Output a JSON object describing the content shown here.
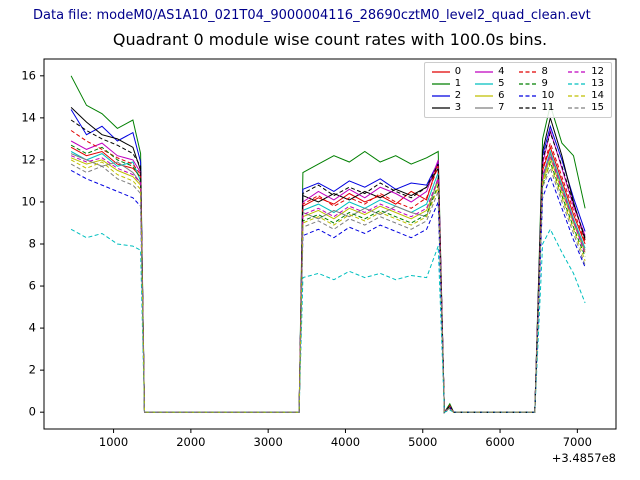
{
  "header": {
    "data_file_label": "Data file: modeM0/AS1A10_021T04_9000004116_28690cztM0_level2_quad_clean.evt"
  },
  "title": "Quadrant 0 module wise count rates with 100.0s bins.",
  "axis": {
    "x_offset_label": "+3.4857e8",
    "xticks": [
      1000,
      2000,
      3000,
      4000,
      5000,
      6000,
      7000
    ],
    "yticks": [
      0,
      2,
      4,
      6,
      8,
      10,
      12,
      14,
      16
    ],
    "xlim": [
      100,
      7500
    ],
    "ylim": [
      -0.8,
      16.8
    ]
  },
  "chart_data": {
    "type": "line",
    "title": "Quadrant 0 module wise count rates with 100.0s bins.",
    "xlabel": "",
    "ylabel": "",
    "x_axis_offset": "+3.4857e8",
    "grid": false,
    "legend_position": "upper right",
    "x": [
      450,
      650,
      850,
      1050,
      1250,
      1350,
      1400,
      3400,
      3450,
      3650,
      3850,
      4050,
      4250,
      4450,
      4650,
      4850,
      5050,
      5200,
      5280,
      5350,
      5400,
      6450,
      6550,
      6650,
      6800,
      6950,
      7100
    ],
    "series": [
      {
        "name": "0",
        "color": "#e00000",
        "dashed": false,
        "values": [
          12.6,
          12.2,
          12.4,
          11.8,
          11.6,
          11.2,
          0,
          0,
          9.8,
          10.2,
          9.9,
          10.4,
          10.0,
          10.3,
          9.9,
          10.5,
          10.1,
          11.9,
          0,
          0.3,
          0,
          0,
          11.5,
          12.6,
          11.0,
          9.4,
          8.0
        ]
      },
      {
        "name": "1",
        "color": "#007f00",
        "dashed": false,
        "values": [
          16.0,
          14.6,
          14.2,
          13.5,
          13.9,
          12.3,
          0,
          0,
          11.4,
          11.8,
          12.2,
          11.9,
          12.4,
          11.9,
          12.2,
          11.8,
          12.1,
          12.4,
          0,
          0.4,
          0,
          0,
          13.0,
          14.6,
          12.8,
          12.2,
          9.7
        ]
      },
      {
        "name": "2",
        "color": "#0000e0",
        "dashed": false,
        "values": [
          14.4,
          13.2,
          13.6,
          12.9,
          13.3,
          11.9,
          0,
          0,
          10.6,
          10.9,
          10.5,
          11.0,
          10.7,
          11.1,
          10.6,
          10.9,
          10.8,
          11.9,
          0,
          0.3,
          0,
          0,
          12.2,
          13.6,
          12.0,
          10.2,
          8.6
        ]
      },
      {
        "name": "3",
        "color": "#000000",
        "dashed": false,
        "values": [
          14.5,
          13.8,
          13.2,
          13.0,
          12.6,
          11.5,
          0,
          0,
          10.3,
          10.0,
          10.4,
          10.1,
          10.5,
          10.2,
          10.6,
          10.3,
          10.7,
          11.6,
          0,
          0.3,
          0,
          0,
          12.4,
          14.0,
          12.2,
          10.0,
          8.2
        ]
      },
      {
        "name": "4",
        "color": "#bf00bf",
        "dashed": false,
        "values": [
          12.9,
          12.5,
          12.8,
          12.2,
          12.0,
          11.4,
          0,
          0,
          10.0,
          10.5,
          10.1,
          10.6,
          10.2,
          10.7,
          10.4,
          10.0,
          10.5,
          12.0,
          0,
          0.3,
          0,
          0,
          11.8,
          13.4,
          11.6,
          9.8,
          8.4
        ]
      },
      {
        "name": "5",
        "color": "#00bfbf",
        "dashed": false,
        "values": [
          12.4,
          12.0,
          12.3,
          11.7,
          11.9,
          11.0,
          0,
          0,
          9.6,
          9.9,
          9.5,
          10.0,
          9.7,
          10.1,
          9.8,
          9.5,
          9.9,
          11.4,
          0,
          0.2,
          0,
          0,
          11.2,
          12.4,
          10.8,
          9.2,
          7.8
        ]
      },
      {
        "name": "6",
        "color": "#bfbf00",
        "dashed": false,
        "values": [
          12.1,
          11.8,
          12.0,
          11.5,
          11.2,
          10.8,
          0,
          0,
          9.3,
          9.6,
          9.2,
          9.7,
          9.4,
          9.8,
          9.5,
          9.2,
          9.6,
          11.0,
          0,
          0.2,
          0,
          0,
          11.0,
          12.1,
          10.5,
          9.0,
          7.6
        ]
      },
      {
        "name": "7",
        "color": "#7f7f7f",
        "dashed": false,
        "values": [
          12.3,
          12.0,
          11.7,
          11.9,
          11.4,
          10.9,
          0,
          0,
          9.5,
          9.2,
          9.6,
          9.3,
          9.7,
          9.4,
          9.8,
          9.5,
          9.3,
          11.2,
          0,
          0.2,
          0,
          0,
          11.1,
          12.3,
          10.7,
          9.1,
          7.7
        ]
      },
      {
        "name": "8",
        "color": "#e00000",
        "dashed": true,
        "values": [
          13.4,
          12.9,
          12.5,
          12.1,
          11.8,
          11.3,
          0,
          0,
          9.9,
          10.3,
          9.8,
          10.2,
          9.9,
          10.4,
          10.0,
          9.7,
          10.2,
          11.7,
          0,
          0.3,
          0,
          0,
          11.6,
          12.8,
          11.2,
          9.6,
          8.1
        ]
      },
      {
        "name": "9",
        "color": "#007f00",
        "dashed": true,
        "values": [
          12.7,
          12.3,
          12.6,
          12.0,
          11.7,
          11.1,
          0,
          0,
          9.1,
          9.4,
          9.0,
          9.5,
          9.2,
          9.6,
          9.3,
          9.0,
          9.4,
          10.8,
          0,
          0.2,
          0,
          0,
          10.8,
          11.9,
          10.3,
          8.8,
          7.4
        ]
      },
      {
        "name": "10",
        "color": "#0000e0",
        "dashed": true,
        "values": [
          11.5,
          11.1,
          10.8,
          10.5,
          10.2,
          9.8,
          0,
          0,
          8.4,
          8.7,
          8.3,
          8.8,
          8.5,
          8.9,
          8.6,
          8.3,
          8.7,
          10.0,
          0,
          0.2,
          0,
          0,
          10.2,
          11.2,
          9.7,
          8.2,
          6.9
        ]
      },
      {
        "name": "11",
        "color": "#000000",
        "dashed": true,
        "values": [
          13.9,
          13.4,
          13.0,
          12.7,
          12.3,
          11.7,
          0,
          0,
          10.4,
          10.8,
          10.3,
          10.7,
          10.4,
          10.9,
          10.5,
          10.2,
          10.7,
          11.8,
          0,
          0.3,
          0,
          0,
          12.0,
          13.3,
          11.7,
          9.9,
          8.3
        ]
      },
      {
        "name": "12",
        "color": "#bf00bf",
        "dashed": true,
        "values": [
          12.2,
          11.9,
          12.1,
          11.6,
          11.3,
          10.9,
          0,
          0,
          9.4,
          9.7,
          9.3,
          9.8,
          9.5,
          9.9,
          9.6,
          9.3,
          9.7,
          11.1,
          0,
          0.2,
          0,
          0,
          11.3,
          12.2,
          10.6,
          9.1,
          7.5
        ]
      },
      {
        "name": "13",
        "color": "#00bfbf",
        "dashed": true,
        "values": [
          8.7,
          8.3,
          8.5,
          8.0,
          7.9,
          7.7,
          0,
          0,
          6.4,
          6.6,
          6.3,
          6.7,
          6.4,
          6.6,
          6.3,
          6.5,
          6.4,
          7.9,
          0,
          0.1,
          0,
          0,
          8.0,
          8.7,
          7.6,
          6.6,
          5.2
        ]
      },
      {
        "name": "14",
        "color": "#bfbf00",
        "dashed": true,
        "values": [
          12.0,
          11.6,
          11.9,
          11.3,
          11.0,
          10.6,
          0,
          0,
          9.0,
          9.3,
          8.9,
          9.4,
          9.1,
          9.5,
          9.2,
          8.9,
          9.3,
          10.7,
          0,
          0.2,
          0,
          0,
          10.9,
          11.8,
          10.2,
          8.7,
          7.2
        ]
      },
      {
        "name": "15",
        "color": "#7f7f7f",
        "dashed": true,
        "values": [
          11.8,
          11.4,
          11.7,
          11.1,
          10.8,
          10.4,
          0,
          0,
          8.8,
          9.1,
          8.7,
          9.2,
          8.9,
          9.3,
          9.0,
          8.7,
          9.1,
          10.5,
          0,
          0.2,
          0,
          0,
          10.7,
          11.6,
          10.0,
          8.5,
          7.0
        ]
      }
    ]
  }
}
